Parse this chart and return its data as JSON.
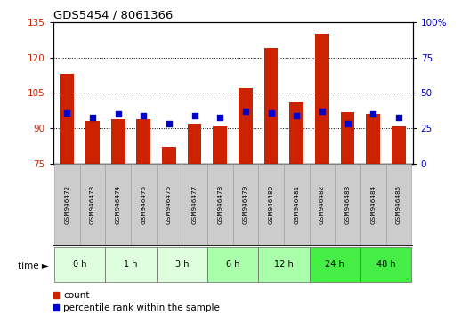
{
  "title": "GDS5454 / 8061366",
  "samples": [
    "GSM946472",
    "GSM946473",
    "GSM946474",
    "GSM946475",
    "GSM946476",
    "GSM946477",
    "GSM946478",
    "GSM946479",
    "GSM946480",
    "GSM946481",
    "GSM946482",
    "GSM946483",
    "GSM946484",
    "GSM946485"
  ],
  "count_values": [
    113,
    93,
    94,
    94,
    82,
    92,
    91,
    107,
    124,
    101,
    130,
    97,
    96,
    91
  ],
  "percentile_values": [
    36,
    33,
    35,
    34,
    28,
    34,
    33,
    37,
    36,
    34,
    37,
    28,
    35,
    33
  ],
  "time_groups": [
    {
      "label": "0 h",
      "indices": [
        0,
        1
      ],
      "color": "#ddffdd"
    },
    {
      "label": "1 h",
      "indices": [
        2,
        3
      ],
      "color": "#ddffdd"
    },
    {
      "label": "3 h",
      "indices": [
        4,
        5
      ],
      "color": "#ddffdd"
    },
    {
      "label": "6 h",
      "indices": [
        6,
        7
      ],
      "color": "#aaffaa"
    },
    {
      "label": "12 h",
      "indices": [
        8,
        9
      ],
      "color": "#aaffaa"
    },
    {
      "label": "24 h",
      "indices": [
        10,
        11
      ],
      "color": "#44ee44"
    },
    {
      "label": "48 h",
      "indices": [
        12,
        13
      ],
      "color": "#44ee44"
    }
  ],
  "ylim_left": [
    75,
    135
  ],
  "ylim_right": [
    0,
    100
  ],
  "yticks_left": [
    75,
    90,
    105,
    120,
    135
  ],
  "yticks_right": [
    0,
    25,
    50,
    75,
    100
  ],
  "bar_color": "#cc2200",
  "dot_color": "#0000cc",
  "bar_bottom": 75,
  "legend_count_label": "count",
  "legend_pct_label": "percentile rank within the sample",
  "background_color": "#ffffff",
  "grid_color": "#000000",
  "sample_box_color": "#cccccc",
  "sample_box_edge": "#999999"
}
